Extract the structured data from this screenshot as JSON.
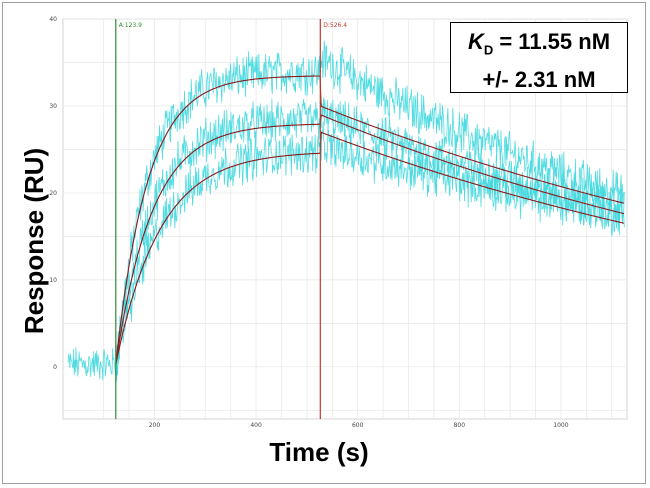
{
  "chart_data": {
    "type": "line",
    "title": "",
    "xlabel": "Time (s)",
    "ylabel": "Response (RU)",
    "xlim": [
      20,
      1130
    ],
    "ylim": [
      -6,
      40
    ],
    "x_ticks": [
      200,
      400,
      600,
      800,
      1000
    ],
    "y_ticks": [
      0,
      10,
      20,
      30,
      40
    ],
    "grid": true,
    "markers": [
      {
        "label": "A:123.9",
        "x": 123.9,
        "color": "#2e8b2e"
      },
      {
        "label": "D:526.4",
        "x": 526.4,
        "color": "#c0392b"
      }
    ],
    "kinetics": {
      "baseline": 0.3,
      "association_start": 123.9,
      "dissociation_start": 526.4,
      "end": 1125
    },
    "series": [
      {
        "values_role": "measured",
        "color": "#3fd8df",
        "plateau": 34.0,
        "ka_rate": 0.016,
        "dissoc_end": 18.2
      },
      {
        "values_role": "measured",
        "color": "#3fd8df",
        "plateau": 28.5,
        "ka_rate": 0.014,
        "dissoc_end": 17.6
      },
      {
        "values_role": "measured",
        "color": "#3fd8df",
        "plateau": 25.0,
        "ka_rate": 0.0115,
        "dissoc_end": 16.8
      },
      {
        "values_role": "fit",
        "color": "#8b1a1a",
        "plateau": 33.5,
        "ka_rate": 0.016,
        "dissoc_start": 30.0,
        "dissoc_end": 18.8
      },
      {
        "values_role": "fit",
        "color": "#8b1a1a",
        "plateau": 28.0,
        "ka_rate": 0.014,
        "dissoc_start": 29.0,
        "dissoc_end": 17.6
      },
      {
        "values_role": "fit",
        "color": "#8b1a1a",
        "plateau": 24.8,
        "ka_rate": 0.0115,
        "dissoc_start": 27.0,
        "dissoc_end": 16.5
      }
    ]
  },
  "annotation": {
    "kd_symbol": "K",
    "kd_subscript": "D",
    "kd_value": " = 11.55 nM",
    "kd_error": "+/- 2.31 nM"
  }
}
